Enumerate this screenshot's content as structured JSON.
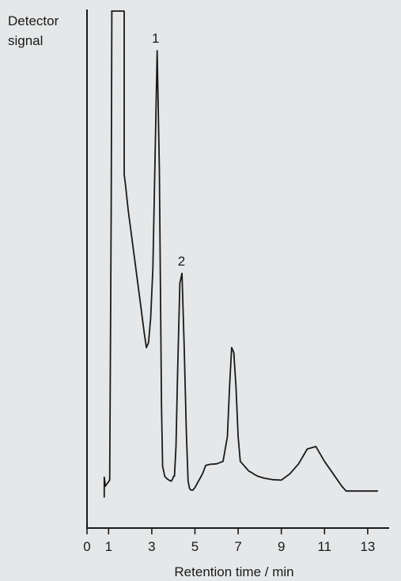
{
  "chart_data": {
    "type": "line",
    "ylabel_lines": [
      "Detector",
      "signal"
    ],
    "xlabel": "Retention time / min",
    "xlim": [
      0,
      13.6
    ],
    "ylim": [
      0,
      100
    ],
    "x_ticks": [
      0,
      1,
      3,
      5,
      7,
      9,
      11,
      13
    ],
    "grid": false,
    "series": [
      {
        "x": [
          1.05,
          1.05,
          1.12,
          1.15,
          1.14,
          1.72,
          1.72,
          1.78,
          1.9,
          2.05,
          2.2,
          2.35,
          2.5,
          2.65,
          2.75,
          2.85,
          2.95,
          3.05,
          3.15,
          3.25,
          3.35,
          3.4,
          3.45,
          3.5,
          3.6,
          3.7,
          3.8,
          3.9,
          3.95,
          4.02,
          4.05,
          4.12,
          4.2,
          4.3,
          4.4,
          4.5,
          4.6,
          4.68,
          4.75,
          4.82,
          4.9,
          5.0,
          5.1,
          5.2,
          5.35,
          5.5,
          5.7,
          6.0,
          6.3,
          6.5,
          6.6,
          6.7,
          6.8,
          6.9,
          7.0,
          7.1,
          7.2,
          7.3,
          7.4,
          7.5,
          7.6,
          7.7,
          7.9,
          8.2,
          8.6,
          9.0,
          9.4,
          9.8,
          10.2,
          10.6,
          11.0,
          11.4,
          11.8,
          12.0,
          12.3,
          12.6,
          12.9,
          13.2,
          13.45
        ],
        "y": [
          5.2,
          5.2,
          60,
          100,
          100,
          100,
          67,
          65,
          60,
          55,
          50,
          45,
          40,
          35,
          32,
          33,
          38,
          48,
          70,
          92,
          68,
          45,
          20,
          8,
          6,
          5.5,
          5.2,
          5.0,
          5.3,
          6,
          6,
          12,
          28,
          45,
          47,
          32,
          15,
          5,
          3.5,
          3.2,
          3.2,
          3.7,
          4.5,
          5.3,
          6.5,
          8.2,
          8.4,
          8.5,
          9,
          14,
          24,
          32,
          31,
          24,
          14,
          9,
          8.5,
          8.0,
          7.5,
          7.0,
          6.8,
          6.5,
          6.0,
          5.6,
          5.3,
          5.2,
          6.5,
          8.5,
          11.5,
          12,
          9,
          6.5,
          4,
          3,
          3,
          3,
          3,
          3,
          3
        ]
      }
    ],
    "annotations": [
      {
        "text": "1",
        "x": 3.25,
        "y": 92
      },
      {
        "text": "2",
        "x": 4.45,
        "y": 47
      }
    ]
  }
}
